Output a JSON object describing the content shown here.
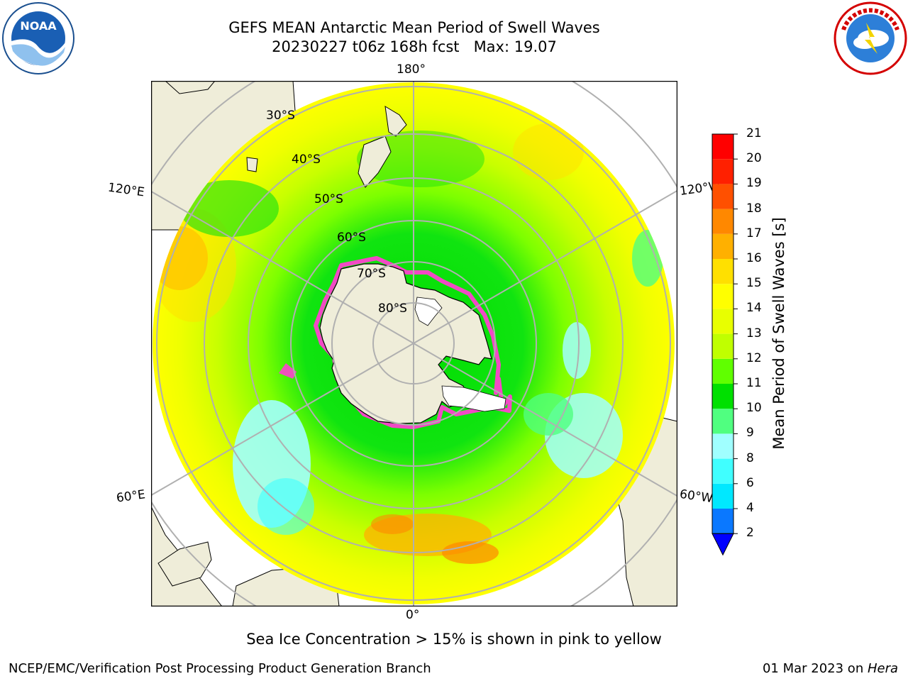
{
  "header": {
    "title": "GEFS MEAN Antarctic Mean Period of Swell Waves",
    "subtitle": "20230227 t06z 168h fcst   Max: 19.07"
  },
  "logos": {
    "noaa_text": "NOAA",
    "noaa_ring_text": "NATIONAL OCEANIC AND ATMOSPHERIC ADMINISTRATION · U.S. DEPARTMENT OF COMMERCE",
    "nws_ring_text": "NATIONAL WEATHER SERVICE"
  },
  "map": {
    "longitude_labels": {
      "top": "180°",
      "bottom": "0°",
      "left_upper": "120°E",
      "left_lower": "60°E",
      "right_upper": "120°W",
      "right_lower": "60°W"
    },
    "latitude_labels": [
      "30°S",
      "40°S",
      "50°S",
      "60°S",
      "70°S",
      "80°S"
    ]
  },
  "colorbar": {
    "title": "Mean Period of Swell Waves [s]",
    "ticks": [
      "2",
      "4",
      "6",
      "8",
      "9",
      "10",
      "11",
      "12",
      "13",
      "14",
      "15",
      "16",
      "17",
      "18",
      "19",
      "20",
      "21"
    ],
    "colors": [
      "#0000ff",
      "#0a78ff",
      "#00e8ff",
      "#40ffff",
      "#a0ffff",
      "#50ff80",
      "#00e000",
      "#60ff00",
      "#c0ff00",
      "#e8ff00",
      "#ffff00",
      "#ffe000",
      "#ffb000",
      "#ff8800",
      "#ff5000",
      "#ff2000",
      "#ff0000"
    ],
    "extend_color": "#0000ff"
  },
  "caption": "Sea Ice Concentration > 15% is shown in pink to yellow",
  "footer": {
    "left": "NCEP/EMC/Verification Post Processing Product Generation Branch",
    "right_date": "01 Mar 2023 on ",
    "right_host": "Hera"
  }
}
